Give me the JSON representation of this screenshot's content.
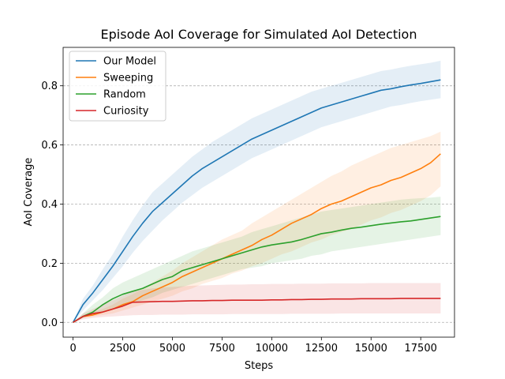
{
  "chart_data": {
    "type": "line",
    "title": "Episode AoI Coverage for Simulated AoI Detection",
    "xlabel": "Steps",
    "ylabel": "AoI Coverage",
    "xlim": [
      -500,
      19200
    ],
    "ylim": [
      -0.05,
      0.93
    ],
    "xticks": [
      0,
      2500,
      5000,
      7500,
      10000,
      12500,
      15000,
      17500
    ],
    "xtick_labels": [
      "0",
      "2500",
      "5000",
      "7500",
      "10000",
      "12500",
      "15000",
      "17500"
    ],
    "yticks": [
      0.0,
      0.2,
      0.4,
      0.6,
      0.8
    ],
    "ytick_labels": [
      "0.0",
      "0.2",
      "0.4",
      "0.6",
      "0.8"
    ],
    "grid": "y-dashed",
    "legend_position": "top-left",
    "x": [
      0,
      500,
      1000,
      1500,
      2000,
      2500,
      3000,
      3500,
      4000,
      4500,
      5000,
      5500,
      6000,
      6500,
      7000,
      7500,
      8000,
      8500,
      9000,
      9500,
      10000,
      10500,
      11000,
      11500,
      12000,
      12500,
      13000,
      13500,
      14000,
      14500,
      15000,
      15500,
      16000,
      16500,
      17000,
      17500,
      18000,
      18500
    ],
    "series": [
      {
        "name": "Our Model",
        "color": "#1f77b4",
        "values": [
          0.0,
          0.06,
          0.1,
          0.145,
          0.19,
          0.24,
          0.29,
          0.335,
          0.375,
          0.405,
          0.435,
          0.465,
          0.495,
          0.52,
          0.54,
          0.56,
          0.58,
          0.6,
          0.62,
          0.635,
          0.65,
          0.665,
          0.68,
          0.695,
          0.71,
          0.725,
          0.735,
          0.745,
          0.755,
          0.765,
          0.775,
          0.785,
          0.79,
          0.797,
          0.803,
          0.808,
          0.814,
          0.82
        ],
        "lower": [
          0.0,
          0.04,
          0.075,
          0.11,
          0.15,
          0.19,
          0.235,
          0.275,
          0.31,
          0.345,
          0.375,
          0.405,
          0.43,
          0.455,
          0.475,
          0.495,
          0.515,
          0.535,
          0.555,
          0.57,
          0.585,
          0.6,
          0.615,
          0.63,
          0.645,
          0.66,
          0.67,
          0.68,
          0.69,
          0.7,
          0.71,
          0.72,
          0.73,
          0.735,
          0.742,
          0.748,
          0.753,
          0.758
        ],
        "upper": [
          0.0,
          0.08,
          0.125,
          0.18,
          0.23,
          0.29,
          0.345,
          0.395,
          0.44,
          0.47,
          0.5,
          0.53,
          0.56,
          0.585,
          0.61,
          0.63,
          0.65,
          0.67,
          0.69,
          0.705,
          0.72,
          0.735,
          0.75,
          0.765,
          0.78,
          0.79,
          0.8,
          0.81,
          0.82,
          0.83,
          0.84,
          0.85,
          0.855,
          0.862,
          0.868,
          0.873,
          0.878,
          0.885
        ]
      },
      {
        "name": "Sweeping",
        "color": "#ff7f0e",
        "values": [
          0.0,
          0.02,
          0.025,
          0.035,
          0.045,
          0.06,
          0.07,
          0.09,
          0.105,
          0.12,
          0.135,
          0.155,
          0.17,
          0.185,
          0.2,
          0.215,
          0.23,
          0.245,
          0.26,
          0.28,
          0.295,
          0.315,
          0.335,
          0.35,
          0.365,
          0.385,
          0.4,
          0.41,
          0.425,
          0.44,
          0.455,
          0.465,
          0.48,
          0.49,
          0.505,
          0.52,
          0.54,
          0.57
        ],
        "lower": [
          0.0,
          0.015,
          0.02,
          0.025,
          0.03,
          0.04,
          0.05,
          0.06,
          0.07,
          0.08,
          0.09,
          0.105,
          0.115,
          0.13,
          0.14,
          0.15,
          0.165,
          0.175,
          0.19,
          0.2,
          0.215,
          0.23,
          0.24,
          0.255,
          0.27,
          0.28,
          0.295,
          0.305,
          0.315,
          0.33,
          0.345,
          0.355,
          0.37,
          0.38,
          0.395,
          0.41,
          0.43,
          0.46
        ],
        "upper": [
          0.0,
          0.025,
          0.035,
          0.045,
          0.06,
          0.08,
          0.095,
          0.115,
          0.135,
          0.155,
          0.175,
          0.2,
          0.22,
          0.24,
          0.26,
          0.28,
          0.295,
          0.31,
          0.335,
          0.355,
          0.375,
          0.395,
          0.415,
          0.435,
          0.455,
          0.475,
          0.495,
          0.51,
          0.53,
          0.545,
          0.56,
          0.575,
          0.59,
          0.6,
          0.61,
          0.62,
          0.63,
          0.645
        ]
      },
      {
        "name": "Random",
        "color": "#2ca02c",
        "values": [
          0.0,
          0.02,
          0.035,
          0.06,
          0.08,
          0.095,
          0.105,
          0.115,
          0.13,
          0.145,
          0.155,
          0.175,
          0.185,
          0.195,
          0.205,
          0.215,
          0.225,
          0.235,
          0.245,
          0.255,
          0.262,
          0.267,
          0.272,
          0.28,
          0.29,
          0.3,
          0.305,
          0.312,
          0.318,
          0.322,
          0.327,
          0.332,
          0.336,
          0.34,
          0.343,
          0.348,
          0.353,
          0.358
        ],
        "lower": [
          0.0,
          0.015,
          0.025,
          0.035,
          0.045,
          0.055,
          0.065,
          0.075,
          0.085,
          0.1,
          0.11,
          0.12,
          0.13,
          0.14,
          0.15,
          0.16,
          0.17,
          0.18,
          0.185,
          0.19,
          0.2,
          0.205,
          0.21,
          0.215,
          0.225,
          0.23,
          0.24,
          0.245,
          0.25,
          0.255,
          0.26,
          0.265,
          0.27,
          0.275,
          0.28,
          0.285,
          0.29,
          0.295
        ],
        "upper": [
          0.0,
          0.03,
          0.06,
          0.085,
          0.115,
          0.135,
          0.15,
          0.165,
          0.18,
          0.195,
          0.21,
          0.225,
          0.24,
          0.25,
          0.26,
          0.27,
          0.28,
          0.29,
          0.305,
          0.315,
          0.325,
          0.335,
          0.345,
          0.355,
          0.365,
          0.375,
          0.38,
          0.385,
          0.39,
          0.395,
          0.4,
          0.405,
          0.41,
          0.415,
          0.418,
          0.42,
          0.422,
          0.425
        ]
      },
      {
        "name": "Curiosity",
        "color": "#d62728",
        "values": [
          0.0,
          0.02,
          0.03,
          0.035,
          0.045,
          0.055,
          0.068,
          0.069,
          0.07,
          0.071,
          0.071,
          0.072,
          0.073,
          0.073,
          0.074,
          0.074,
          0.075,
          0.075,
          0.075,
          0.075,
          0.076,
          0.076,
          0.077,
          0.077,
          0.078,
          0.078,
          0.079,
          0.079,
          0.079,
          0.08,
          0.08,
          0.08,
          0.08,
          0.081,
          0.081,
          0.081,
          0.081,
          0.081
        ],
        "lower": [
          0.0,
          0.01,
          0.015,
          0.018,
          0.02,
          0.022,
          0.024,
          0.025,
          0.025,
          0.026,
          0.026,
          0.026,
          0.027,
          0.027,
          0.027,
          0.027,
          0.028,
          0.028,
          0.028,
          0.028,
          0.028,
          0.028,
          0.029,
          0.029,
          0.029,
          0.029,
          0.029,
          0.03,
          0.03,
          0.03,
          0.03,
          0.03,
          0.03,
          0.03,
          0.03,
          0.03,
          0.03,
          0.03
        ],
        "upper": [
          0.0,
          0.03,
          0.045,
          0.06,
          0.075,
          0.09,
          0.105,
          0.11,
          0.115,
          0.118,
          0.12,
          0.122,
          0.124,
          0.125,
          0.126,
          0.127,
          0.128,
          0.128,
          0.129,
          0.129,
          0.13,
          0.13,
          0.13,
          0.131,
          0.131,
          0.131,
          0.132,
          0.132,
          0.132,
          0.132,
          0.133,
          0.133,
          0.133,
          0.133,
          0.133,
          0.133,
          0.133,
          0.133
        ]
      }
    ]
  }
}
